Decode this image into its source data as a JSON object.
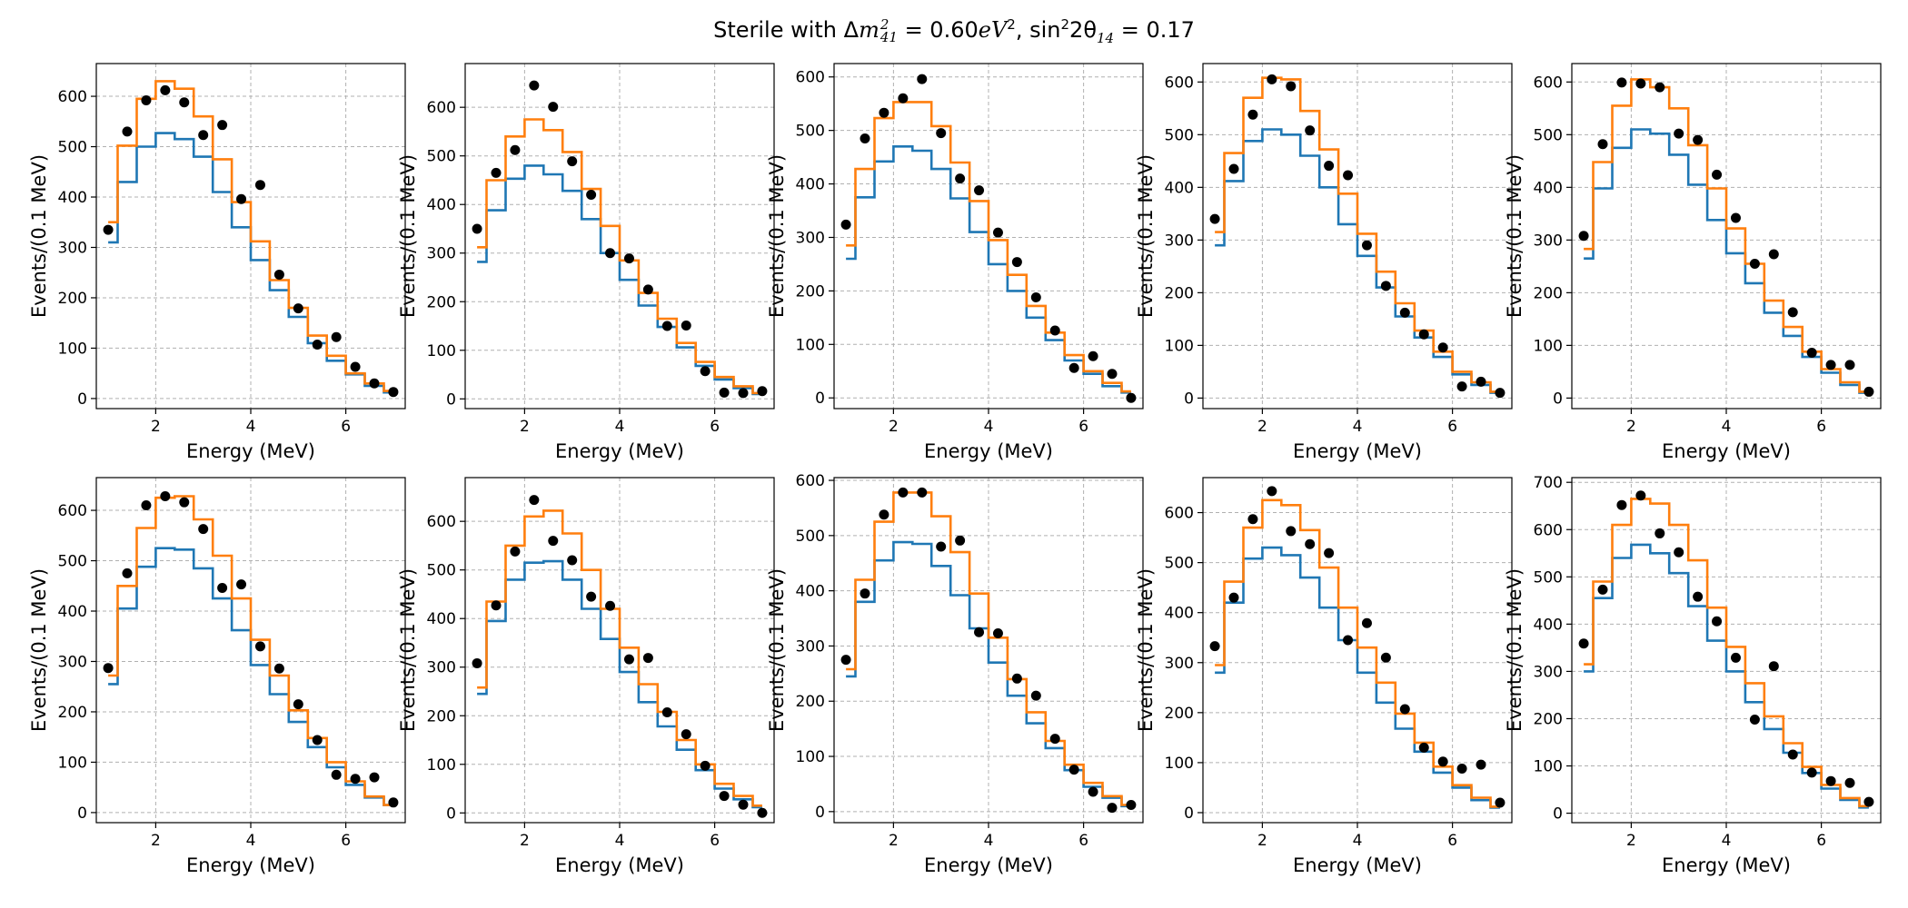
{
  "figure": {
    "title_prefix": "Sterile with ",
    "title_delta": "Δ",
    "title_m": "m",
    "title_m_sup": "2",
    "title_m_sub": "41",
    "title_eq1": " = 0.60",
    "title_ev": "eV",
    "title_ev_sup": "2",
    "title_sep": ", ",
    "title_sin": "sin",
    "title_sin_sup": "2",
    "title_angle": "2θ",
    "title_angle_sub": "14",
    "title_eq2": " = 0.17"
  },
  "colors": {
    "series_1": "#1f77b4",
    "series_2": "#ff7f0e",
    "data_points": "#000000"
  },
  "chart_data": [
    {
      "type": "line",
      "xlabel": "Energy (MeV)",
      "ylabel": "Events/(0.1 MeV)",
      "xlim": [
        0.75,
        7.25
      ],
      "ylim": [
        -20,
        665
      ],
      "xticks": [
        2,
        4,
        6
      ],
      "yticks": [
        0,
        100,
        200,
        300,
        400,
        500,
        600
      ],
      "grid": true,
      "bin_edges": [
        1.0,
        1.2,
        1.6,
        2.0,
        2.4,
        2.8,
        3.2,
        3.6,
        4.0,
        4.4,
        4.8,
        5.2,
        5.6,
        6.0,
        6.4,
        6.8,
        7.0
      ],
      "series": [
        {
          "values": [
            310,
            430,
            500,
            527,
            515,
            480,
            410,
            340,
            275,
            215,
            162,
            110,
            75,
            48,
            25,
            12
          ]
        },
        {
          "values": [
            350,
            502,
            595,
            630,
            615,
            560,
            475,
            390,
            312,
            235,
            180,
            125,
            85,
            50,
            30,
            15
          ]
        }
      ],
      "points": {
        "x": [
          1.0,
          1.4,
          1.8,
          2.2,
          2.6,
          3.0,
          3.4,
          3.8,
          4.2,
          4.6,
          5.0,
          5.4,
          5.8,
          6.2,
          6.6,
          7.0
        ],
        "y": [
          335,
          530,
          592,
          612,
          588,
          523,
          543,
          396,
          424,
          246,
          179,
          107,
          122,
          63,
          30,
          13
        ]
      }
    },
    {
      "type": "line",
      "xlabel": "Energy (MeV)",
      "ylabel": "Events/(0.1 MeV)",
      "xlim": [
        0.75,
        7.25
      ],
      "ylim": [
        -20,
        690
      ],
      "xticks": [
        2,
        4,
        6
      ],
      "yticks": [
        0,
        100,
        200,
        300,
        400,
        500,
        600
      ],
      "grid": true,
      "bin_edges": [
        1.0,
        1.2,
        1.6,
        2.0,
        2.4,
        2.8,
        3.2,
        3.6,
        4.0,
        4.4,
        4.8,
        5.2,
        5.6,
        6.0,
        6.4,
        6.8,
        7.0
      ],
      "series": [
        {
          "values": [
            282,
            388,
            453,
            480,
            462,
            428,
            370,
            300,
            245,
            192,
            148,
            106,
            68,
            40,
            22,
            10
          ]
        },
        {
          "values": [
            312,
            450,
            540,
            575,
            553,
            508,
            432,
            356,
            285,
            218,
            165,
            115,
            76,
            45,
            26,
            12
          ]
        }
      ],
      "points": {
        "x": [
          1.0,
          1.4,
          1.8,
          2.2,
          2.6,
          3.0,
          3.4,
          3.8,
          4.2,
          4.6,
          5.0,
          5.4,
          5.8,
          6.2,
          6.6,
          7.0
        ],
        "y": [
          350,
          465,
          512,
          645,
          601,
          489,
          420,
          300,
          289,
          225,
          150,
          151,
          57,
          13,
          12,
          16
        ]
      }
    },
    {
      "type": "line",
      "xlabel": "Energy (MeV)",
      "ylabel": "Events/(0.1 MeV)",
      "xlim": [
        0.75,
        7.25
      ],
      "ylim": [
        -20,
        625
      ],
      "xticks": [
        2,
        4,
        6
      ],
      "yticks": [
        0,
        100,
        200,
        300,
        400,
        500,
        600
      ],
      "grid": true,
      "bin_edges": [
        1.0,
        1.2,
        1.6,
        2.0,
        2.4,
        2.8,
        3.2,
        3.6,
        4.0,
        4.4,
        4.8,
        5.2,
        5.6,
        6.0,
        6.4,
        6.8,
        7.0
      ],
      "series": [
        {
          "values": [
            260,
            375,
            442,
            470,
            462,
            428,
            373,
            310,
            250,
            200,
            150,
            108,
            70,
            45,
            22,
            10
          ]
        },
        {
          "values": [
            285,
            428,
            523,
            553,
            553,
            508,
            440,
            368,
            295,
            230,
            172,
            122,
            80,
            50,
            28,
            12
          ]
        }
      ],
      "points": {
        "x": [
          1.0,
          1.4,
          1.8,
          2.2,
          2.6,
          3.0,
          3.4,
          3.8,
          4.2,
          4.6,
          5.0,
          5.4,
          5.8,
          6.2,
          6.6,
          7.0
        ],
        "y": [
          324,
          485,
          533,
          560,
          596,
          495,
          410,
          388,
          309,
          254,
          188,
          126,
          56,
          78,
          45,
          0
        ]
      }
    },
    {
      "type": "line",
      "xlabel": "Energy (MeV)",
      "ylabel": "Events/(0.1 MeV)",
      "xlim": [
        0.75,
        7.25
      ],
      "ylim": [
        -20,
        635
      ],
      "xticks": [
        2,
        4,
        6
      ],
      "yticks": [
        0,
        100,
        200,
        300,
        400,
        500,
        600
      ],
      "grid": true,
      "bin_edges": [
        1.0,
        1.2,
        1.6,
        2.0,
        2.4,
        2.8,
        3.2,
        3.6,
        4.0,
        4.4,
        4.8,
        5.2,
        5.6,
        6.0,
        6.4,
        6.8,
        7.0
      ],
      "series": [
        {
          "values": [
            290,
            412,
            488,
            510,
            500,
            460,
            400,
            330,
            270,
            210,
            155,
            115,
            78,
            45,
            25,
            10
          ]
        },
        {
          "values": [
            315,
            465,
            570,
            608,
            605,
            545,
            472,
            388,
            312,
            240,
            180,
            128,
            88,
            50,
            30,
            12
          ]
        }
      ],
      "points": {
        "x": [
          1.0,
          1.4,
          1.8,
          2.2,
          2.6,
          3.0,
          3.4,
          3.8,
          4.2,
          4.6,
          5.0,
          5.4,
          5.8,
          6.2,
          6.6,
          7.0
        ],
        "y": [
          340,
          435,
          538,
          605,
          592,
          508,
          441,
          423,
          290,
          213,
          162,
          121,
          96,
          22,
          31,
          10
        ]
      }
    },
    {
      "type": "line",
      "xlabel": "Energy (MeV)",
      "ylabel": "Events/(0.1 MeV)",
      "xlim": [
        0.75,
        7.25
      ],
      "ylim": [
        -20,
        635
      ],
      "xticks": [
        2,
        4,
        6
      ],
      "yticks": [
        0,
        100,
        200,
        300,
        400,
        500,
        600
      ],
      "grid": true,
      "bin_edges": [
        1.0,
        1.2,
        1.6,
        2.0,
        2.4,
        2.8,
        3.2,
        3.6,
        4.0,
        4.4,
        4.8,
        5.2,
        5.6,
        6.0,
        6.4,
        6.8,
        7.0
      ],
      "series": [
        {
          "values": [
            265,
            398,
            475,
            510,
            502,
            462,
            405,
            338,
            275,
            218,
            162,
            118,
            78,
            48,
            25,
            10
          ]
        },
        {
          "values": [
            283,
            448,
            555,
            605,
            590,
            550,
            480,
            398,
            322,
            255,
            185,
            135,
            88,
            55,
            30,
            12
          ]
        }
      ],
      "points": {
        "x": [
          1.0,
          1.4,
          1.8,
          2.2,
          2.6,
          3.0,
          3.4,
          3.8,
          4.2,
          4.6,
          5.0,
          5.4,
          5.8,
          6.2,
          6.6,
          7.0
        ],
        "y": [
          308,
          482,
          599,
          597,
          590,
          502,
          490,
          424,
          342,
          255,
          273,
          163,
          86,
          63,
          63,
          12
        ]
      }
    },
    {
      "type": "line",
      "xlabel": "Energy (MeV)",
      "ylabel": "Events/(0.1 MeV)",
      "xlim": [
        0.75,
        7.25
      ],
      "ylim": [
        -20,
        665
      ],
      "xticks": [
        2,
        4,
        6
      ],
      "yticks": [
        0,
        100,
        200,
        300,
        400,
        500,
        600
      ],
      "grid": true,
      "bin_edges": [
        1.0,
        1.2,
        1.6,
        2.0,
        2.4,
        2.8,
        3.2,
        3.6,
        4.0,
        4.4,
        4.8,
        5.2,
        5.6,
        6.0,
        6.4,
        6.8,
        7.0
      ],
      "series": [
        {
          "values": [
            255,
            405,
            488,
            525,
            522,
            485,
            425,
            362,
            293,
            235,
            180,
            130,
            90,
            55,
            30,
            15
          ]
        },
        {
          "values": [
            272,
            450,
            565,
            625,
            628,
            582,
            510,
            425,
            343,
            272,
            203,
            148,
            100,
            62,
            32,
            15
          ]
        }
      ],
      "points": {
        "x": [
          1.0,
          1.4,
          1.8,
          2.2,
          2.6,
          3.0,
          3.4,
          3.8,
          4.2,
          4.6,
          5.0,
          5.4,
          5.8,
          6.2,
          6.6,
          7.0
        ],
        "y": [
          287,
          475,
          610,
          628,
          616,
          563,
          446,
          453,
          330,
          286,
          215,
          144,
          75,
          67,
          70,
          20
        ]
      }
    },
    {
      "type": "line",
      "xlabel": "Energy (MeV)",
      "ylabel": "Events/(0.1 MeV)",
      "xlim": [
        0.75,
        7.25
      ],
      "ylim": [
        -20,
        690
      ],
      "xticks": [
        2,
        4,
        6
      ],
      "yticks": [
        0,
        100,
        200,
        300,
        400,
        500,
        600
      ],
      "grid": true,
      "bin_edges": [
        1.0,
        1.2,
        1.6,
        2.0,
        2.4,
        2.8,
        3.2,
        3.6,
        4.0,
        4.4,
        4.8,
        5.2,
        5.6,
        6.0,
        6.4,
        6.8,
        7.0
      ],
      "series": [
        {
          "values": [
            245,
            395,
            480,
            515,
            518,
            480,
            420,
            358,
            290,
            228,
            178,
            130,
            88,
            50,
            28,
            12
          ]
        },
        {
          "values": [
            258,
            435,
            550,
            610,
            622,
            575,
            500,
            420,
            340,
            265,
            208,
            150,
            100,
            60,
            35,
            15
          ]
        }
      ],
      "points": {
        "x": [
          1.0,
          1.4,
          1.8,
          2.2,
          2.6,
          3.0,
          3.4,
          3.8,
          4.2,
          4.6,
          5.0,
          5.4,
          5.8,
          6.2,
          6.6,
          7.0
        ],
        "y": [
          308,
          427,
          538,
          644,
          560,
          520,
          445,
          426,
          316,
          319,
          207,
          162,
          97,
          35,
          17,
          0
        ]
      }
    },
    {
      "type": "line",
      "xlabel": "Energy (MeV)",
      "ylabel": "Events/(0.1 MeV)",
      "xlim": [
        0.75,
        7.25
      ],
      "ylim": [
        -20,
        605
      ],
      "xticks": [
        2,
        4,
        6
      ],
      "yticks": [
        0,
        100,
        200,
        300,
        400,
        500,
        600
      ],
      "grid": true,
      "bin_edges": [
        1.0,
        1.2,
        1.6,
        2.0,
        2.4,
        2.8,
        3.2,
        3.6,
        4.0,
        4.4,
        4.8,
        5.2,
        5.6,
        6.0,
        6.4,
        6.8,
        7.0
      ],
      "series": [
        {
          "values": [
            245,
            380,
            455,
            488,
            485,
            445,
            392,
            332,
            270,
            210,
            160,
            115,
            75,
            45,
            25,
            10
          ]
        },
        {
          "values": [
            258,
            420,
            525,
            578,
            578,
            535,
            470,
            395,
            315,
            240,
            180,
            128,
            85,
            52,
            28,
            12
          ]
        }
      ],
      "points": {
        "x": [
          1.0,
          1.4,
          1.8,
          2.2,
          2.6,
          3.0,
          3.4,
          3.8,
          4.2,
          4.6,
          5.0,
          5.4,
          5.8,
          6.2,
          6.6,
          7.0
        ],
        "y": [
          275,
          395,
          538,
          578,
          578,
          480,
          491,
          325,
          323,
          241,
          210,
          132,
          76,
          36,
          7,
          12
        ]
      }
    },
    {
      "type": "line",
      "xlabel": "Energy (MeV)",
      "ylabel": "Events/(0.1 MeV)",
      "xlim": [
        0.75,
        7.25
      ],
      "ylim": [
        -20,
        670
      ],
      "xticks": [
        2,
        4,
        6
      ],
      "yticks": [
        0,
        100,
        200,
        300,
        400,
        500,
        600
      ],
      "grid": true,
      "bin_edges": [
        1.0,
        1.2,
        1.6,
        2.0,
        2.4,
        2.8,
        3.2,
        3.6,
        4.0,
        4.4,
        4.8,
        5.2,
        5.6,
        6.0,
        6.4,
        6.8,
        7.0
      ],
      "series": [
        {
          "values": [
            280,
            420,
            508,
            530,
            515,
            470,
            410,
            345,
            280,
            220,
            168,
            122,
            80,
            50,
            25,
            10
          ]
        },
        {
          "values": [
            295,
            462,
            570,
            625,
            615,
            565,
            490,
            410,
            330,
            260,
            198,
            140,
            92,
            55,
            30,
            12
          ]
        }
      ],
      "points": {
        "x": [
          1.0,
          1.4,
          1.8,
          2.2,
          2.6,
          3.0,
          3.4,
          3.8,
          4.2,
          4.6,
          5.0,
          5.4,
          5.8,
          6.2,
          6.6,
          7.0
        ],
        "y": [
          333,
          430,
          587,
          643,
          563,
          537,
          519,
          345,
          379,
          310,
          207,
          130,
          102,
          88,
          96,
          20
        ]
      }
    },
    {
      "type": "line",
      "xlabel": "Energy (MeV)",
      "ylabel": "Events/(0.1 MeV)",
      "xlim": [
        0.75,
        7.25
      ],
      "ylim": [
        -20,
        710
      ],
      "xticks": [
        2,
        4,
        6
      ],
      "yticks": [
        0,
        100,
        200,
        300,
        400,
        500,
        600,
        700
      ],
      "grid": true,
      "bin_edges": [
        1.0,
        1.2,
        1.6,
        2.0,
        2.4,
        2.8,
        3.2,
        3.6,
        4.0,
        4.4,
        4.8,
        5.2,
        5.6,
        6.0,
        6.4,
        6.8,
        7.0
      ],
      "series": [
        {
          "values": [
            300,
            455,
            540,
            568,
            550,
            508,
            438,
            365,
            300,
            235,
            178,
            128,
            85,
            52,
            28,
            12
          ]
        },
        {
          "values": [
            315,
            490,
            610,
            665,
            655,
            610,
            535,
            435,
            352,
            275,
            205,
            148,
            98,
            60,
            32,
            15
          ]
        }
      ],
      "points": {
        "x": [
          1.0,
          1.4,
          1.8,
          2.2,
          2.6,
          3.0,
          3.4,
          3.8,
          4.2,
          4.6,
          5.0,
          5.4,
          5.8,
          6.2,
          6.6,
          7.0
        ],
        "y": [
          359,
          473,
          652,
          672,
          592,
          552,
          458,
          406,
          329,
          198,
          311,
          124,
          86,
          68,
          64,
          24
        ]
      }
    }
  ]
}
